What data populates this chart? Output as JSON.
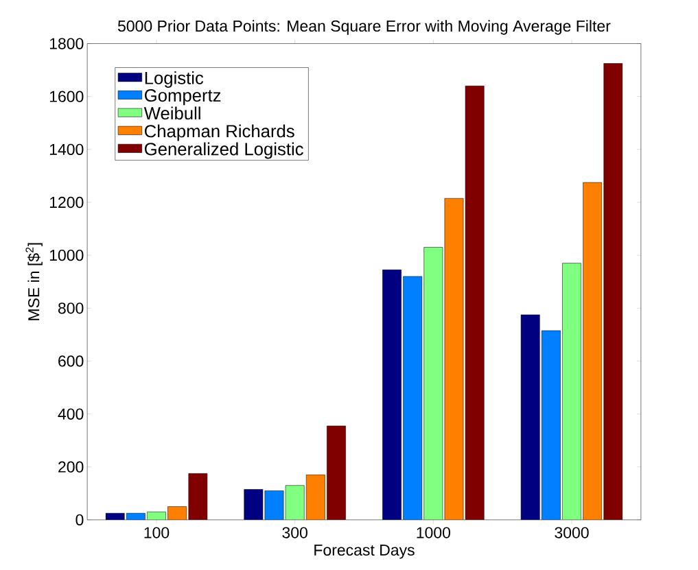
{
  "chart_data": {
    "type": "bar",
    "title": "5000 Prior Data Points: Mean Square Error with Moving Average Filter",
    "xlabel": "Forecast Days",
    "ylabel": "MSE in [$$^{2}$]",
    "categories": [
      "100",
      "300",
      "1000",
      "3000"
    ],
    "series": [
      {
        "name": "Logistic",
        "color": "#000080",
        "values": [
          25,
          115,
          945,
          775
        ]
      },
      {
        "name": "Gompertz",
        "color": "#0080ff",
        "values": [
          25,
          110,
          920,
          715
        ]
      },
      {
        "name": "Weibull",
        "color": "#80ff80",
        "values": [
          30,
          130,
          1030,
          970
        ]
      },
      {
        "name": "Chapman Richards",
        "color": "#ff8000",
        "values": [
          50,
          170,
          1215,
          1275
        ]
      },
      {
        "name": "Generalized Logistic",
        "color": "#800000",
        "values": [
          175,
          355,
          1640,
          1725
        ]
      }
    ],
    "ylim": [
      0,
      1800
    ],
    "yticks": [
      0,
      200,
      400,
      600,
      800,
      1000,
      1200,
      1400,
      1600,
      1800
    ],
    "legend": "top left"
  }
}
